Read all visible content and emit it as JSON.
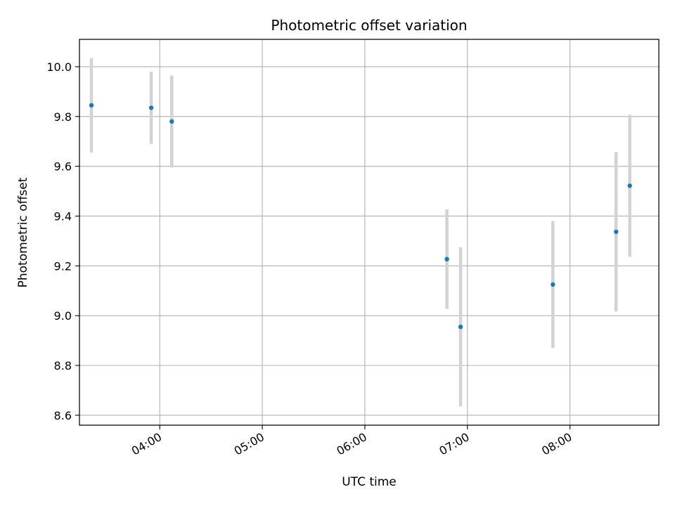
{
  "chart_data": {
    "type": "scatter",
    "title": "Photometric offset variation",
    "xlabel": "UTC time",
    "ylabel": "Photometric offset",
    "x_unit": "UTC hours",
    "xlim": [
      "03:13",
      "08:52"
    ],
    "ylim": [
      8.56,
      10.11
    ],
    "xticks": [
      "04:00",
      "05:00",
      "06:00",
      "07:00",
      "08:00"
    ],
    "yticks": [
      8.6,
      8.8,
      9.0,
      9.2,
      9.4,
      9.6,
      9.8,
      10.0
    ],
    "ytick_labels": [
      "8.6",
      "8.8",
      "9.0",
      "9.2",
      "9.4",
      "9.6",
      "9.8",
      "10.0"
    ],
    "grid": true,
    "legend": false,
    "points": [
      {
        "time": "03:20",
        "y": 9.845,
        "err": 0.19
      },
      {
        "time": "03:55",
        "y": 9.835,
        "err": 0.145
      },
      {
        "time": "04:07",
        "y": 9.78,
        "err": 0.185
      },
      {
        "time": "06:48",
        "y": 9.227,
        "err": 0.2
      },
      {
        "time": "06:56",
        "y": 8.955,
        "err": 0.32
      },
      {
        "time": "07:50",
        "y": 9.125,
        "err": 0.255
      },
      {
        "time": "08:27",
        "y": 9.337,
        "err": 0.32
      },
      {
        "time": "08:35",
        "y": 9.522,
        "err": 0.285
      }
    ],
    "colors": {
      "marker": "#1f77b4",
      "errorbar": "#d3d3d3",
      "grid": "#b0b0b0",
      "axes": "#000000"
    }
  }
}
